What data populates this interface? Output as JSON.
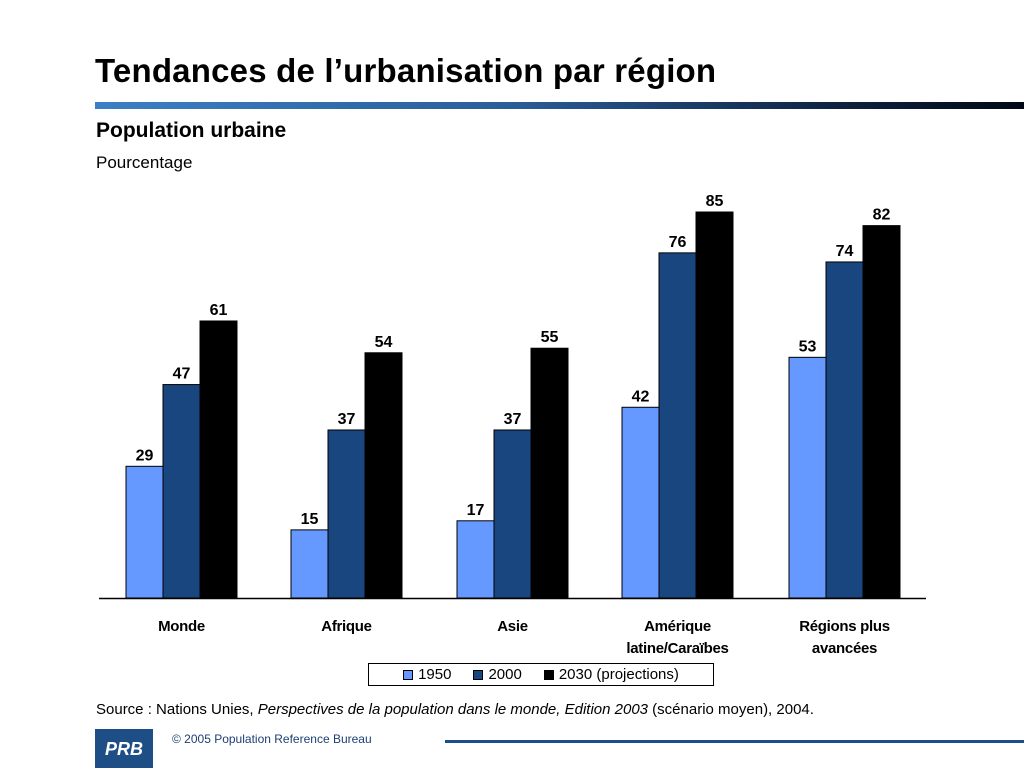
{
  "slide": {
    "title": "Tendances de l’urbanisation par région",
    "subtitle": "Population urbaine",
    "unit_label": "Pourcentage"
  },
  "chart_data": {
    "type": "bar",
    "title": "Population urbaine",
    "ylabel": "Pourcentage",
    "xlabel": "",
    "ylim": [
      0,
      85
    ],
    "grid": false,
    "legend_position": "bottom",
    "categories": [
      "Monde",
      "Afrique",
      "Asie",
      "Amérique latine/Caraïbes",
      "Régions plus avancées"
    ],
    "category_lines": [
      [
        "Monde"
      ],
      [
        "Afrique"
      ],
      [
        "Asie"
      ],
      [
        "Amérique",
        "latine/Caraïbes"
      ],
      [
        "Régions plus",
        "avancées"
      ]
    ],
    "series": [
      {
        "name": "1950",
        "color": "#6699ff",
        "values": [
          29,
          15,
          17,
          42,
          53
        ]
      },
      {
        "name": "2000",
        "color": "#1a4680",
        "values": [
          47,
          37,
          37,
          76,
          74
        ]
      },
      {
        "name": "2030 (projections)",
        "color": "#000000",
        "values": [
          61,
          54,
          55,
          85,
          82
        ]
      }
    ]
  },
  "source": {
    "prefix": "Source : Nations Unies, ",
    "title": "Perspectives de la population dans le monde, Edition 2003",
    "suffix": " (scénario moyen), 2004."
  },
  "footer": {
    "logo_text": "PRB",
    "copyright": "© 2005 Population Reference Bureau",
    "brand_color": "#1e4e86"
  }
}
